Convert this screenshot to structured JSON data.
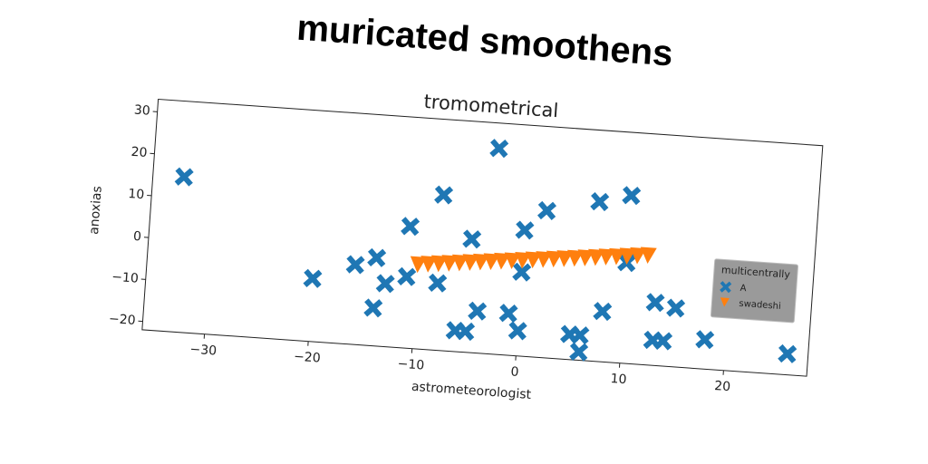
{
  "chart_data": {
    "type": "scatter",
    "suptitle": "muricated smoothens",
    "title": "tromometrical",
    "xlabel": "astrometeorologist",
    "ylabel": "anoxias",
    "xlim": [
      -36,
      28
    ],
    "ylim": [
      -22,
      33
    ],
    "xticks": [
      {
        "value": -30,
        "label": "−30"
      },
      {
        "value": -20,
        "label": "−20"
      },
      {
        "value": -10,
        "label": "−10"
      },
      0,
      10,
      20
    ],
    "yticks": [
      {
        "value": -20,
        "label": "−20"
      },
      {
        "value": -10,
        "label": "−10"
      },
      0,
      10,
      20,
      30
    ],
    "legend_title": "multicentrally",
    "legend": "right",
    "series": [
      {
        "name": "A",
        "color": "#1f77b4",
        "marker": "X",
        "x": [
          -33,
          -3,
          -8,
          10,
          7,
          2,
          -11,
          0,
          -5,
          10,
          -14,
          -16,
          -11,
          -8,
          -13,
          -20,
          0,
          -14,
          -4,
          -1,
          8,
          13,
          15,
          -6,
          -5,
          0,
          5,
          6,
          13,
          14,
          18,
          6,
          26
        ],
        "y": [
          15,
          27,
          15,
          18,
          16,
          13,
          7,
          8,
          5,
          2,
          -1,
          -3,
          -5,
          -6,
          -7,
          -7,
          -2,
          -13,
          -12,
          -12,
          -10,
          -7,
          -8,
          -17,
          -17,
          -16,
          -16,
          -16,
          -16,
          -16,
          -15,
          -20,
          -17
        ]
      },
      {
        "name": "swadeshi",
        "color": "#ff7f0e",
        "marker": "v",
        "x": [
          -10,
          -9,
          -8,
          -7,
          -6,
          -5,
          -4,
          -3,
          -2,
          -1,
          0,
          1,
          2,
          3,
          4,
          5,
          6,
          7,
          8,
          9,
          10,
          11,
          12
        ],
        "y": [
          -2,
          -1.73,
          -1.45,
          -1.18,
          -0.91,
          -0.64,
          -0.36,
          -0.09,
          0.18,
          0.45,
          0.73,
          1.0,
          1.27,
          1.55,
          1.82,
          2.09,
          2.36,
          2.64,
          2.91,
          3.18,
          3.45,
          3.73,
          4.0
        ]
      }
    ]
  }
}
